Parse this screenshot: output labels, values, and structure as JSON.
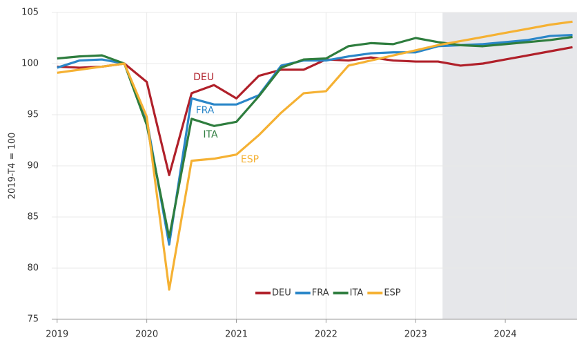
{
  "chart_data": {
    "type": "line",
    "y_label": "2019-T4 = 100",
    "x": [
      2019,
      2019.25,
      2019.5,
      2019.75,
      2020,
      2020.25,
      2020.5,
      2020.75,
      2021,
      2021.25,
      2021.5,
      2021.75,
      2022,
      2022.25,
      2022.5,
      2022.75,
      2023,
      2023.25,
      2023.5,
      2023.75,
      2024,
      2024.25,
      2024.5,
      2024.75
    ],
    "series": [
      {
        "name": "DEU",
        "color": "#b0202a",
        "values": [
          99.7,
          99.6,
          99.7,
          100.0,
          98.2,
          89.1,
          97.1,
          97.9,
          96.6,
          98.8,
          99.4,
          99.4,
          100.4,
          100.3,
          100.6,
          100.3,
          100.2,
          100.2,
          99.8,
          100.0,
          100.4,
          100.8,
          101.2,
          101.6
        ]
      },
      {
        "name": "FRA",
        "color": "#2a86c8",
        "values": [
          99.6,
          100.3,
          100.4,
          100.0,
          94.5,
          82.3,
          96.6,
          96.0,
          96.0,
          96.9,
          99.8,
          100.3,
          100.3,
          100.7,
          101.0,
          101.1,
          101.1,
          101.7,
          101.8,
          101.9,
          102.1,
          102.3,
          102.7,
          102.8
        ]
      },
      {
        "name": "ITA",
        "color": "#2e7d3e",
        "values": [
          100.5,
          100.7,
          100.8,
          100.0,
          94.0,
          83.0,
          94.6,
          93.9,
          94.3,
          96.8,
          99.6,
          100.4,
          100.5,
          101.7,
          102.0,
          101.9,
          102.5,
          102.1,
          101.8,
          101.7,
          101.9,
          102.1,
          102.3,
          102.6
        ]
      },
      {
        "name": "ESP",
        "color": "#f5b133",
        "values": [
          99.1,
          99.4,
          99.7,
          100.0,
          94.8,
          77.9,
          90.5,
          90.7,
          91.1,
          93.0,
          95.2,
          97.1,
          97.3,
          99.8,
          100.3,
          100.8,
          101.3,
          101.8,
          102.2,
          102.6,
          103.0,
          103.4,
          103.8,
          104.1
        ]
      }
    ],
    "xlim": [
      2018.94,
      2024.8
    ],
    "xticks": [
      2019,
      2020,
      2021,
      2022,
      2023,
      2024
    ],
    "ylim": [
      75,
      105
    ],
    "yticks": [
      75,
      80,
      85,
      90,
      95,
      100,
      105
    ],
    "grid": true,
    "shade_from": 2023.3,
    "shade_color": "#e6e7ea",
    "legend": "bottom"
  }
}
